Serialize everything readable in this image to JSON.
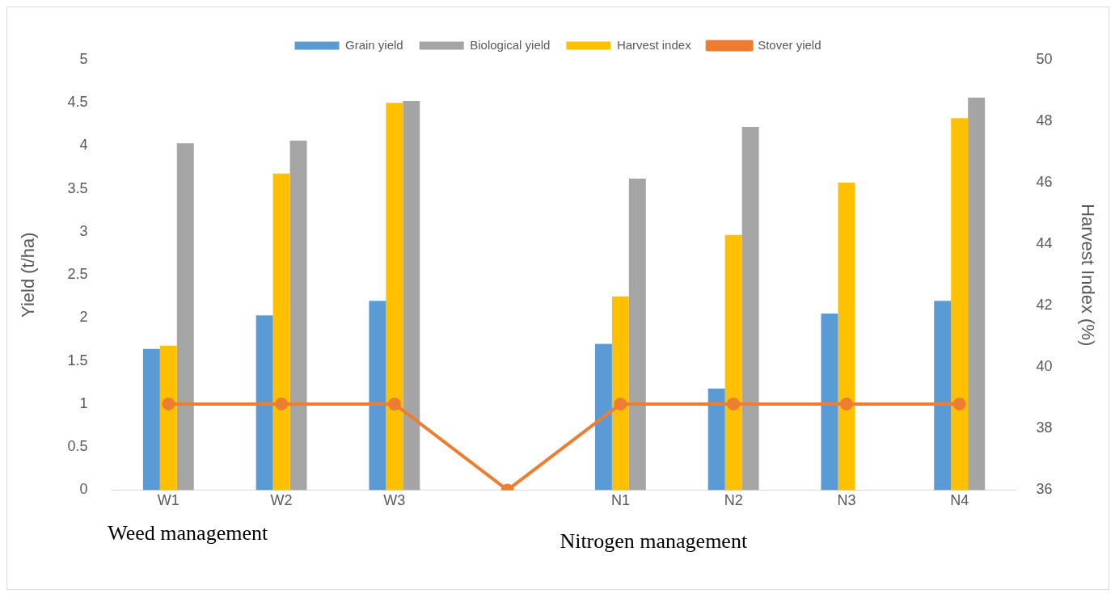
{
  "chart_data": {
    "type": "bar",
    "ylabel": "Yield (t/ha)",
    "y2label": "Harvest Index (%)",
    "categories": [
      "W1",
      "W2",
      "W3",
      null,
      "N1",
      "N2",
      "N3",
      "N4"
    ],
    "series": [
      {
        "name": "Grain yield",
        "color": "#5b9bd5",
        "values": [
          1.64,
          2.03,
          2.2,
          null,
          1.7,
          1.18,
          2.05,
          2.2
        ]
      },
      {
        "name": "Biological yield",
        "color": "#a5a5a5",
        "values": [
          4.03,
          4.06,
          4.52,
          null,
          3.62,
          4.22,
          null,
          4.56
        ]
      },
      {
        "name": "Harvest index",
        "color": "#ffc000",
        "axis": "y2",
        "values": [
          40.7,
          46.3,
          48.6,
          null,
          42.3,
          44.3,
          46.0,
          48.1
        ]
      },
      {
        "name": "Stover yield",
        "type": "line",
        "color": "#ed7d31",
        "values": [
          1,
          1,
          1,
          0,
          1,
          1,
          1,
          1
        ]
      }
    ],
    "ylim": [
      0,
      5
    ],
    "yticks": [
      0,
      0.5,
      1,
      1.5,
      2,
      2.5,
      3,
      3.5,
      4,
      4.5,
      5
    ],
    "y2lim": [
      36,
      50
    ],
    "y2ticks": [
      36,
      38,
      40,
      42,
      44,
      46,
      48,
      50
    ],
    "grid": false,
    "legend": "top",
    "marker": "circle",
    "annotations": [
      "Weed management",
      "Nitrogen management"
    ]
  }
}
